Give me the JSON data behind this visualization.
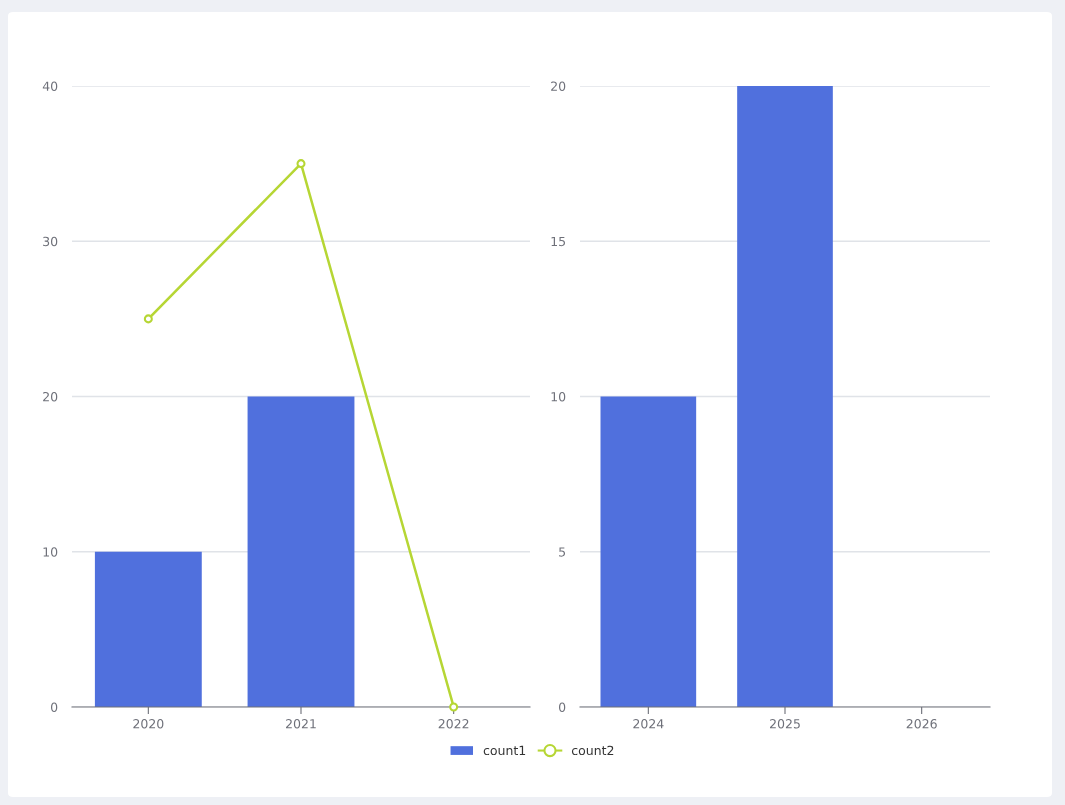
{
  "chart_data": [
    {
      "type": "bar",
      "categories": [
        "2020",
        "2021",
        "2022"
      ],
      "ylim": [
        0,
        40
      ],
      "yticks": [
        0,
        10,
        20,
        30,
        40
      ],
      "grid": "y",
      "legend": "bottom",
      "series": [
        {
          "name": "count1",
          "color": "#5070dd",
          "values": [
            10,
            20,
            null
          ]
        },
        {
          "name": "count2",
          "type": "line",
          "color": "#b6d634",
          "marker": "circle",
          "values": [
            25,
            35,
            0
          ]
        }
      ]
    },
    {
      "type": "bar",
      "categories": [
        "2024",
        "2025",
        "2026"
      ],
      "ylim": [
        0,
        20
      ],
      "yticks": [
        0,
        5,
        10,
        15,
        20
      ],
      "grid": "y",
      "series": [
        {
          "color": "#5070dd",
          "values": [
            10,
            20,
            null
          ]
        }
      ]
    }
  ]
}
